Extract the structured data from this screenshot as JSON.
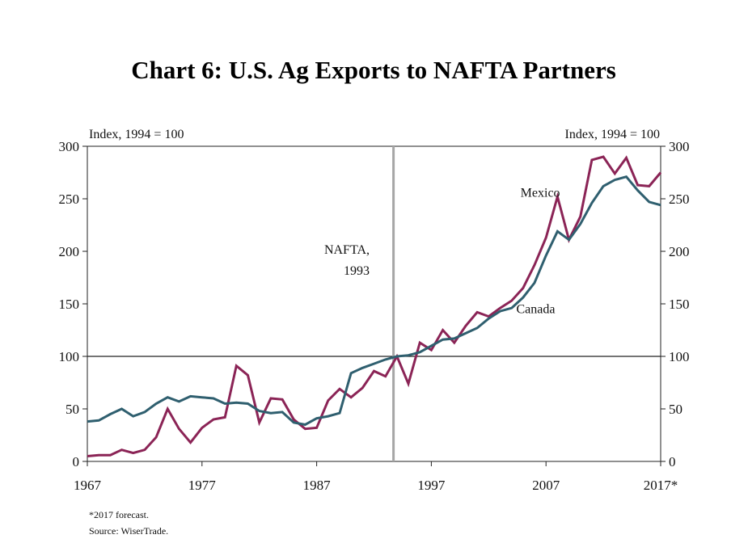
{
  "chart_data": {
    "type": "line",
    "title": "Chart 6: U.S. Ag Exports to NAFTA Partners",
    "y_unit_left": "Index, 1994 = 100",
    "y_unit_right": "Index, 1994 = 100",
    "xlim": [
      1967,
      2017
    ],
    "ylim": [
      0,
      300
    ],
    "x_ticks": [
      1967,
      1977,
      1987,
      1997,
      2007,
      2017
    ],
    "x_tick_labels": [
      "1967",
      "1977",
      "1987",
      "1997",
      "2007",
      "2017*"
    ],
    "y_ticks": [
      0,
      50,
      100,
      150,
      200,
      250,
      300
    ],
    "y_tick_labels": [
      "0",
      "50",
      "100",
      "150",
      "200",
      "250",
      "300"
    ],
    "grid": false,
    "reference_line_y": 100,
    "vertical_marker": {
      "x": 1993.7,
      "label_line1": "NAFTA,",
      "label_line2": "1993",
      "color": "#a6a6a6"
    },
    "series": [
      {
        "name": "Mexico",
        "color": "#8b2456",
        "label_x": 2006.5,
        "label_y": 252,
        "x": [
          1967,
          1968,
          1969,
          1970,
          1971,
          1972,
          1973,
          1974,
          1975,
          1976,
          1977,
          1978,
          1979,
          1980,
          1981,
          1982,
          1983,
          1984,
          1985,
          1986,
          1987,
          1988,
          1989,
          1990,
          1991,
          1992,
          1993,
          1994,
          1995,
          1996,
          1997,
          1998,
          1999,
          2000,
          2001,
          2002,
          2003,
          2004,
          2005,
          2006,
          2007,
          2008,
          2009,
          2010,
          2011,
          2012,
          2013,
          2014,
          2015,
          2016,
          2017
        ],
        "values": [
          5,
          6,
          6,
          11,
          8,
          11,
          23,
          50,
          31,
          18,
          32,
          40,
          42,
          91,
          82,
          37,
          60,
          59,
          40,
          31,
          32,
          58,
          69,
          61,
          70,
          86,
          81,
          100,
          74,
          113,
          106,
          125,
          113,
          129,
          142,
          138,
          146,
          153,
          165,
          187,
          213,
          252,
          211,
          233,
          287,
          290,
          274,
          289,
          263,
          262,
          275
        ]
      },
      {
        "name": "Canada",
        "color": "#2f5f6f",
        "label_x": 2006.1,
        "label_y": 141,
        "x": [
          1967,
          1968,
          1969,
          1970,
          1971,
          1972,
          1973,
          1974,
          1975,
          1976,
          1977,
          1978,
          1979,
          1980,
          1981,
          1982,
          1983,
          1984,
          1985,
          1986,
          1987,
          1988,
          1989,
          1990,
          1991,
          1992,
          1993,
          1994,
          1995,
          1996,
          1997,
          1998,
          1999,
          2000,
          2001,
          2002,
          2003,
          2004,
          2005,
          2006,
          2007,
          2008,
          2009,
          2010,
          2011,
          2012,
          2013,
          2014,
          2015,
          2016,
          2017
        ],
        "values": [
          38,
          39,
          45,
          50,
          43,
          47,
          55,
          61,
          57,
          62,
          61,
          60,
          55,
          56,
          55,
          48,
          46,
          47,
          37,
          35,
          41,
          43,
          46,
          84,
          89,
          93,
          97,
          100,
          101,
          104,
          110,
          116,
          117,
          122,
          127,
          136,
          143,
          146,
          156,
          170,
          196,
          219,
          211,
          226,
          246,
          262,
          268,
          271,
          258,
          247,
          244
        ]
      }
    ],
    "footnotes": [
      "*2017 forecast.",
      "Source: WiserTrade."
    ]
  }
}
